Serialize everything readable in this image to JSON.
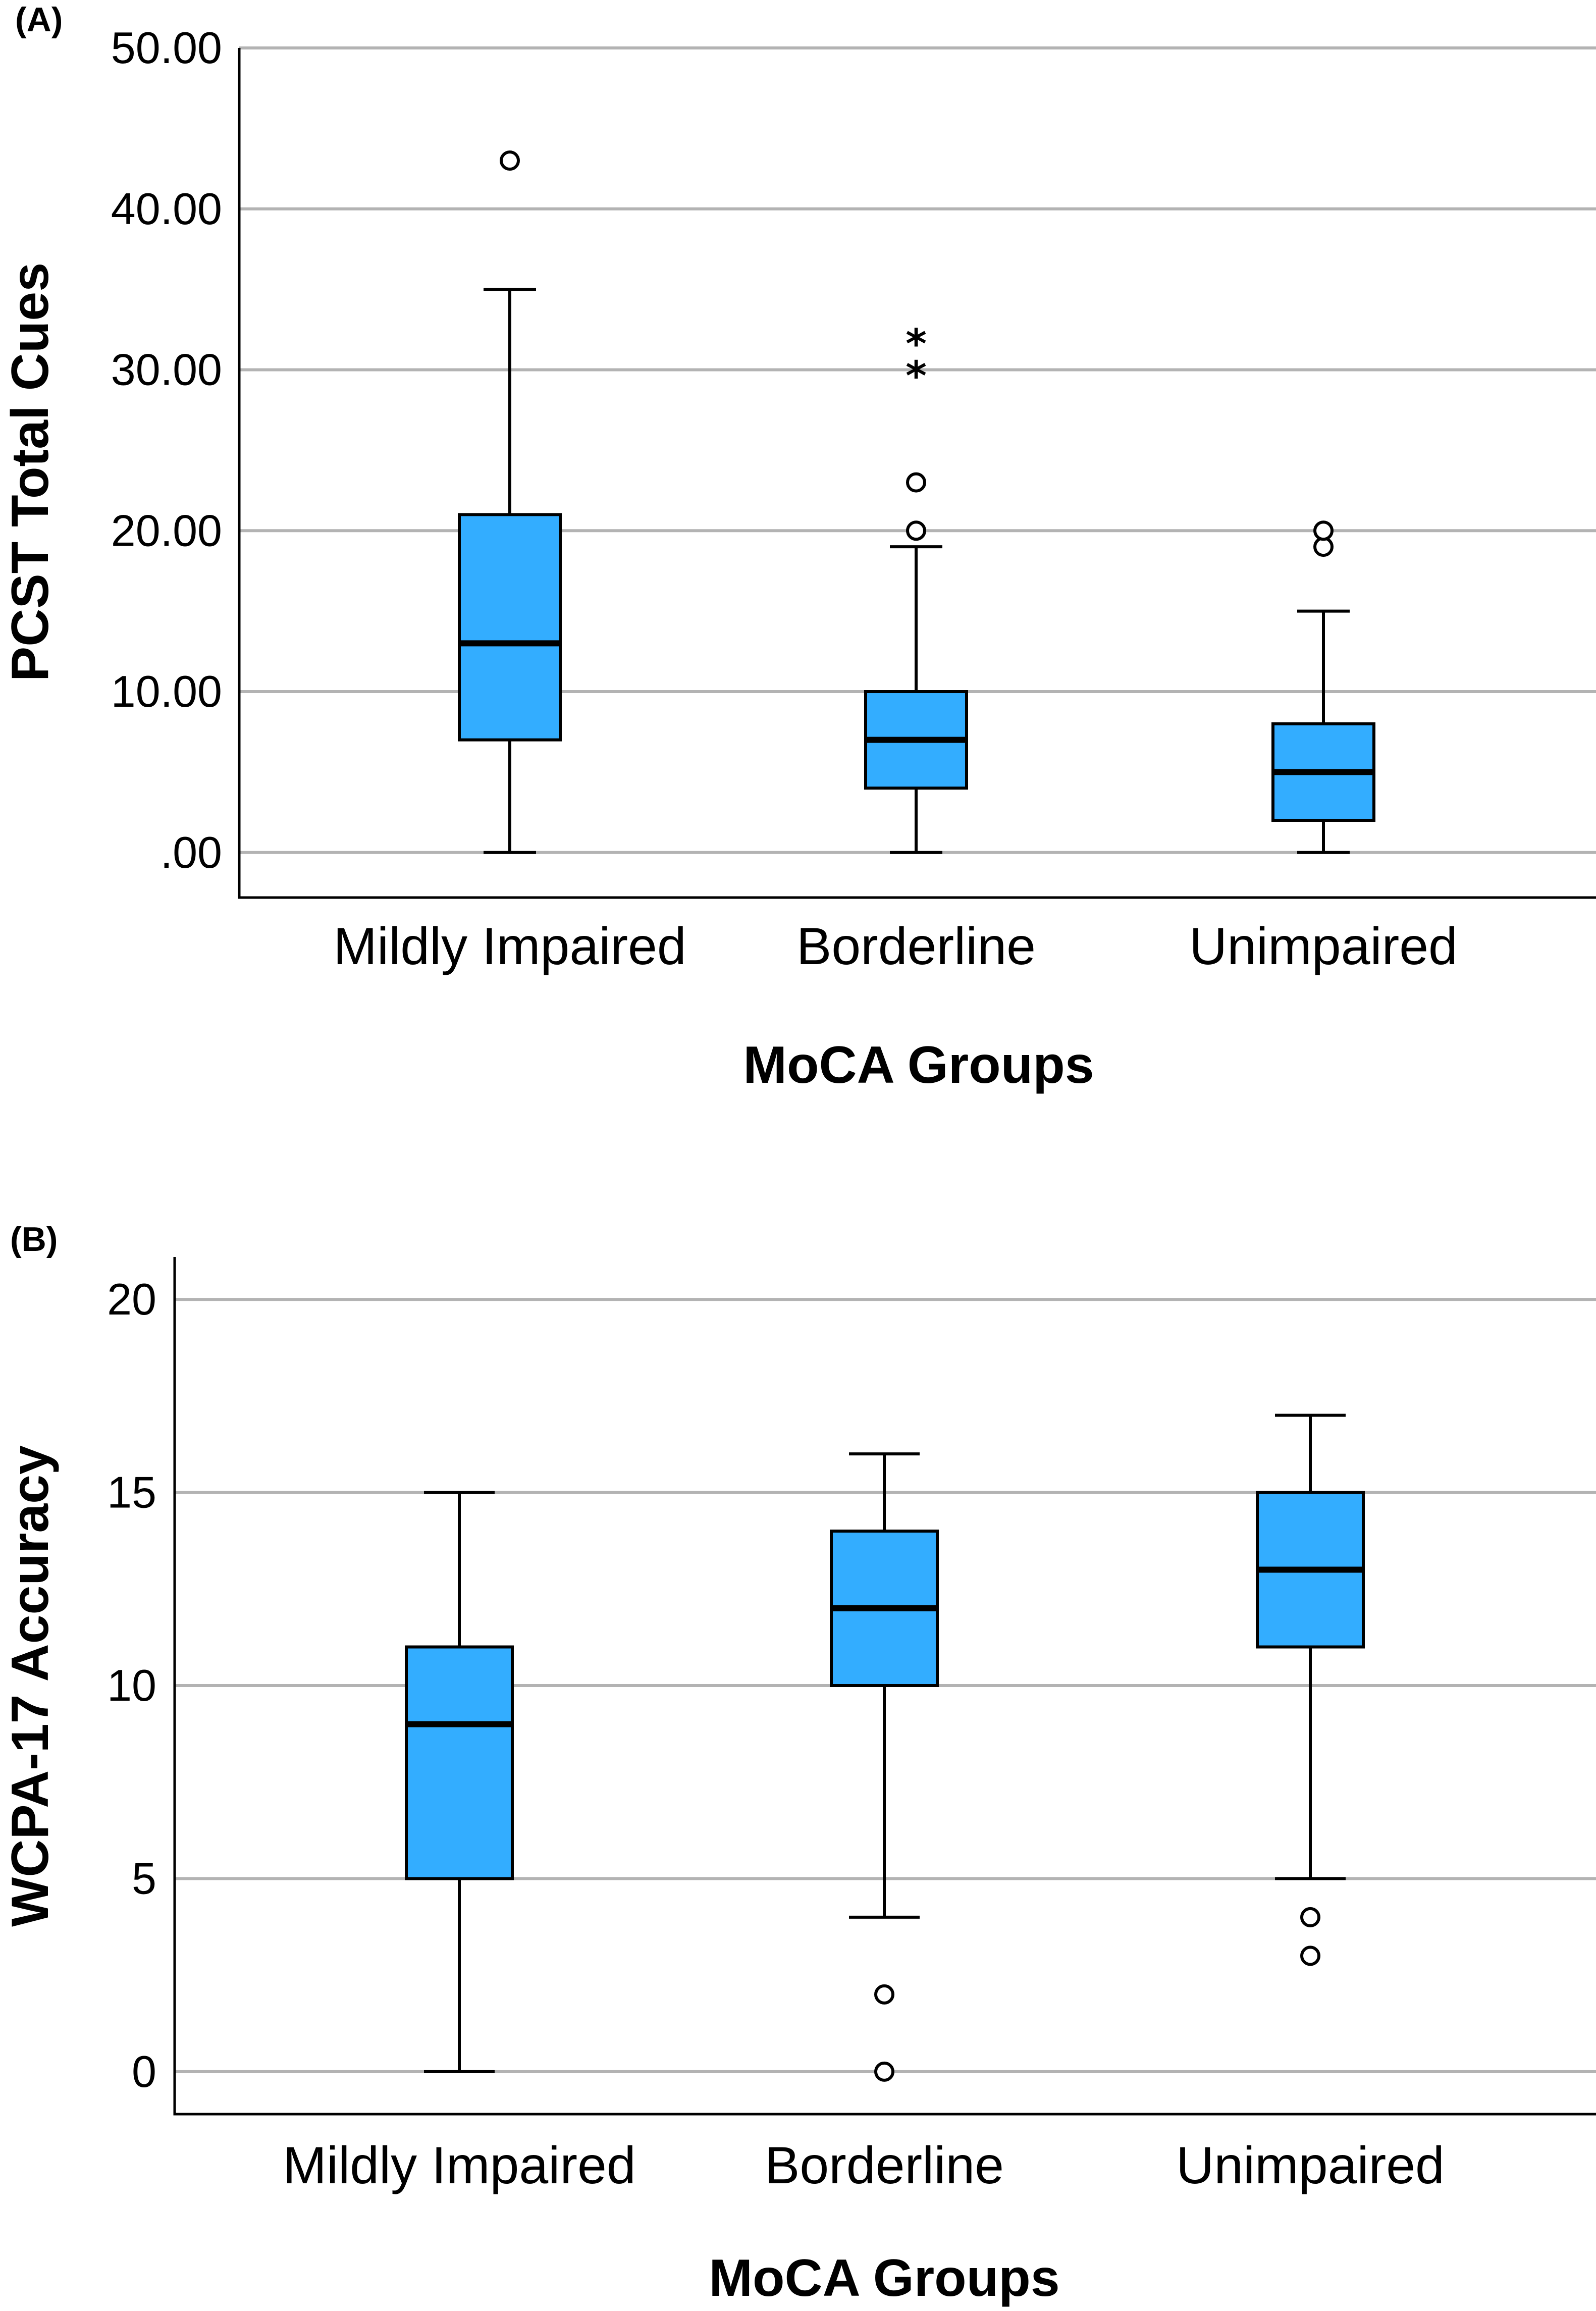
{
  "chart_data": [
    {
      "type": "boxplot",
      "panel_label": "(A)",
      "categories": [
        "Mildly Impaired",
        "Borderline",
        "Unimpaired"
      ],
      "xlabel": "MoCA Groups",
      "ylabel": "PCST Total Cues",
      "ylim": [
        -2.8,
        50
      ],
      "yticks": [
        0,
        10,
        20,
        30,
        40,
        50
      ],
      "ytick_labels": [
        ".00",
        "10.00",
        "20.00",
        "30.00",
        "40.00",
        "50.00"
      ],
      "grid": true,
      "box_color": "#33adff",
      "grid_color": "#b3b3b3",
      "boxes": [
        {
          "group": "Mildly Impaired",
          "min": 0,
          "q1": 7,
          "median": 13,
          "q3": 21,
          "max": 35,
          "outliers": [
            43
          ],
          "extremes": []
        },
        {
          "group": "Borderline",
          "min": 0,
          "q1": 4,
          "median": 7,
          "q3": 10,
          "max": 19,
          "outliers": [
            20,
            23
          ],
          "extremes": [
            30,
            32
          ]
        },
        {
          "group": "Unimpaired",
          "min": 0,
          "q1": 2,
          "median": 5,
          "q3": 8,
          "max": 15,
          "outliers": [
            19,
            20
          ],
          "extremes": []
        }
      ]
    },
    {
      "type": "boxplot",
      "panel_label": "(B)",
      "categories": [
        "Mildly Impaired",
        "Borderline",
        "Unimpaired"
      ],
      "xlabel": "MoCA Groups",
      "ylabel": "WCPA-17 Accuracy",
      "ylim": [
        -1.1,
        21.1
      ],
      "yticks": [
        0,
        5,
        10,
        15,
        20
      ],
      "ytick_labels": [
        "0",
        "5",
        "10",
        "15",
        "20"
      ],
      "grid": true,
      "box_color": "#33adff",
      "grid_color": "#b3b3b3",
      "boxes": [
        {
          "group": "Mildly Impaired",
          "min": 0,
          "q1": 5,
          "median": 9,
          "q3": 11,
          "max": 15,
          "outliers": [],
          "extremes": []
        },
        {
          "group": "Borderline",
          "min": 4,
          "q1": 10,
          "median": 12,
          "q3": 14,
          "max": 16,
          "outliers": [
            0,
            2
          ],
          "extremes": []
        },
        {
          "group": "Unimpaired",
          "min": 5,
          "q1": 11,
          "median": 13,
          "q3": 15,
          "max": 17,
          "outliers": [
            3,
            4
          ],
          "extremes": []
        }
      ]
    }
  ]
}
